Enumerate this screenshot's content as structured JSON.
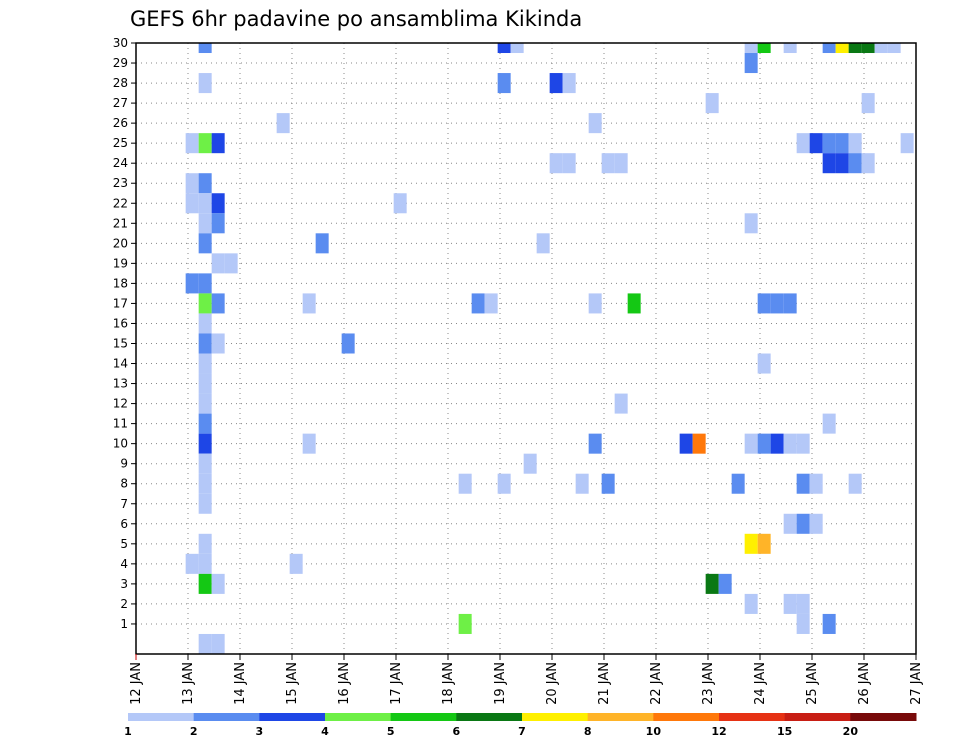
{
  "chart_data": {
    "type": "heatmap",
    "title": "GEFS 6hr padavine po ansamblima Kikinda",
    "xlabel": "",
    "ylabel": "",
    "x_tick_labels": [
      "12 JAN",
      "13 JAN",
      "14 JAN",
      "15 JAN",
      "16 JAN",
      "17 JAN",
      "18 JAN",
      "19 JAN",
      "20 JAN",
      "21 JAN",
      "22 JAN",
      "23 JAN",
      "24 JAN",
      "25 JAN",
      "26 JAN",
      "27 JAN"
    ],
    "x_range_days": [
      12,
      27
    ],
    "y_range": [
      0,
      30
    ],
    "y_ticks": [
      1,
      2,
      3,
      4,
      5,
      6,
      7,
      8,
      9,
      10,
      11,
      12,
      13,
      14,
      15,
      16,
      17,
      18,
      19,
      20,
      21,
      22,
      23,
      24,
      25,
      26,
      27,
      28,
      29,
      30
    ],
    "grid": "dotted",
    "colorbar": {
      "position": "bottom",
      "labels": [
        "1",
        "2",
        "3",
        "4",
        "5",
        "6",
        "7",
        "8",
        "10",
        "12",
        "15",
        "20"
      ],
      "colors": [
        "#b4c8f8",
        "#5a8cf0",
        "#1e46e6",
        "#6ef046",
        "#14c814",
        "#0a7814",
        "#fff000",
        "#ffb428",
        "#ff780a",
        "#e63214",
        "#c81e14",
        "#780a0a"
      ]
    },
    "cells": [
      {
        "day": 13.33,
        "member": 30,
        "value": 2
      },
      {
        "day": 19.08,
        "member": 30,
        "value": 3.5
      },
      {
        "day": 19.33,
        "member": 30,
        "value": 1.5
      },
      {
        "day": 23.83,
        "member": 30,
        "value": 1.5
      },
      {
        "day": 24.08,
        "member": 30,
        "value": 5.5
      },
      {
        "day": 24.58,
        "member": 30,
        "value": 1.5
      },
      {
        "day": 25.33,
        "member": 30,
        "value": 2.5
      },
      {
        "day": 25.58,
        "member": 30,
        "value": 7.5
      },
      {
        "day": 25.83,
        "member": 30,
        "value": 6.5
      },
      {
        "day": 26.08,
        "member": 30,
        "value": 6.5
      },
      {
        "day": 26.33,
        "member": 30,
        "value": 1.5
      },
      {
        "day": 26.58,
        "member": 30,
        "value": 1.5
      },
      {
        "day": 23.83,
        "member": 29,
        "value": 2.5
      },
      {
        "day": 13.33,
        "member": 28,
        "value": 1.5
      },
      {
        "day": 19.08,
        "member": 28,
        "value": 2.5
      },
      {
        "day": 20.08,
        "member": 28,
        "value": 3.5
      },
      {
        "day": 20.33,
        "member": 28,
        "value": 1.5
      },
      {
        "day": 23.08,
        "member": 27,
        "value": 1.5
      },
      {
        "day": 26.08,
        "member": 27,
        "value": 1.5
      },
      {
        "day": 14.83,
        "member": 26,
        "value": 1.5
      },
      {
        "day": 20.83,
        "member": 26,
        "value": 1.5
      },
      {
        "day": 13.08,
        "member": 25,
        "value": 1.5
      },
      {
        "day": 13.33,
        "member": 25,
        "value": 4.5
      },
      {
        "day": 13.58,
        "member": 25,
        "value": 3.5
      },
      {
        "day": 24.83,
        "member": 25,
        "value": 1.5
      },
      {
        "day": 25.08,
        "member": 25,
        "value": 3.5
      },
      {
        "day": 25.33,
        "member": 25,
        "value": 2.5
      },
      {
        "day": 25.58,
        "member": 25,
        "value": 2.5
      },
      {
        "day": 25.83,
        "member": 25,
        "value": 1.5
      },
      {
        "day": 26.83,
        "member": 25,
        "value": 1.5
      },
      {
        "day": 20.08,
        "member": 24,
        "value": 1.5
      },
      {
        "day": 20.33,
        "member": 24,
        "value": 1.5
      },
      {
        "day": 21.08,
        "member": 24,
        "value": 1.5
      },
      {
        "day": 21.33,
        "member": 24,
        "value": 1.5
      },
      {
        "day": 25.33,
        "member": 24,
        "value": 3.5
      },
      {
        "day": 25.58,
        "member": 24,
        "value": 3.5
      },
      {
        "day": 25.83,
        "member": 24,
        "value": 2.5
      },
      {
        "day": 26.08,
        "member": 24,
        "value": 1.5
      },
      {
        "day": 13.08,
        "member": 23,
        "value": 1.5
      },
      {
        "day": 13.33,
        "member": 23,
        "value": 2.5
      },
      {
        "day": 13.08,
        "member": 22,
        "value": 1.5
      },
      {
        "day": 13.33,
        "member": 22,
        "value": 1.5
      },
      {
        "day": 13.58,
        "member": 22,
        "value": 3.5
      },
      {
        "day": 17.08,
        "member": 22,
        "value": 1.5
      },
      {
        "day": 13.33,
        "member": 21,
        "value": 1.5
      },
      {
        "day": 13.58,
        "member": 21,
        "value": 2.5
      },
      {
        "day": 23.83,
        "member": 21,
        "value": 1.5
      },
      {
        "day": 13.33,
        "member": 20,
        "value": 2.5
      },
      {
        "day": 15.58,
        "member": 20,
        "value": 2.5
      },
      {
        "day": 19.83,
        "member": 20,
        "value": 1.5
      },
      {
        "day": 13.58,
        "member": 19,
        "value": 1.5
      },
      {
        "day": 13.83,
        "member": 19,
        "value": 1.5
      },
      {
        "day": 13.08,
        "member": 18,
        "value": 2.5
      },
      {
        "day": 13.33,
        "member": 18,
        "value": 2.5
      },
      {
        "day": 13.33,
        "member": 17,
        "value": 4.5
      },
      {
        "day": 13.58,
        "member": 17,
        "value": 2.5
      },
      {
        "day": 15.33,
        "member": 17,
        "value": 1.5
      },
      {
        "day": 18.58,
        "member": 17,
        "value": 2.5
      },
      {
        "day": 18.83,
        "member": 17,
        "value": 1.5
      },
      {
        "day": 20.83,
        "member": 17,
        "value": 1.5
      },
      {
        "day": 21.58,
        "member": 17,
        "value": 5.5
      },
      {
        "day": 24.08,
        "member": 17,
        "value": 2.5
      },
      {
        "day": 24.33,
        "member": 17,
        "value": 2.5
      },
      {
        "day": 24.58,
        "member": 17,
        "value": 2.5
      },
      {
        "day": 13.33,
        "member": 16,
        "value": 1.5
      },
      {
        "day": 13.33,
        "member": 15,
        "value": 2.5
      },
      {
        "day": 13.58,
        "member": 15,
        "value": 1.5
      },
      {
        "day": 16.08,
        "member": 15,
        "value": 2.5
      },
      {
        "day": 13.33,
        "member": 14,
        "value": 1.5
      },
      {
        "day": 24.08,
        "member": 14,
        "value": 1.5
      },
      {
        "day": 13.33,
        "member": 13,
        "value": 1.5
      },
      {
        "day": 13.33,
        "member": 12,
        "value": 1.5
      },
      {
        "day": 21.33,
        "member": 12,
        "value": 1.5
      },
      {
        "day": 13.33,
        "member": 11,
        "value": 2.5
      },
      {
        "day": 25.33,
        "member": 11,
        "value": 1.5
      },
      {
        "day": 13.33,
        "member": 10,
        "value": 3.5
      },
      {
        "day": 15.33,
        "member": 10,
        "value": 1.5
      },
      {
        "day": 20.83,
        "member": 10,
        "value": 2.5
      },
      {
        "day": 22.58,
        "member": 10,
        "value": 3.5
      },
      {
        "day": 22.83,
        "member": 10,
        "value": 11
      },
      {
        "day": 23.83,
        "member": 10,
        "value": 1.5
      },
      {
        "day": 24.08,
        "member": 10,
        "value": 2.5
      },
      {
        "day": 24.33,
        "member": 10,
        "value": 3.5
      },
      {
        "day": 24.58,
        "member": 10,
        "value": 1.5
      },
      {
        "day": 24.83,
        "member": 10,
        "value": 1.5
      },
      {
        "day": 13.33,
        "member": 9,
        "value": 1.5
      },
      {
        "day": 19.58,
        "member": 9,
        "value": 1.5
      },
      {
        "day": 13.33,
        "member": 8,
        "value": 1.5
      },
      {
        "day": 18.33,
        "member": 8,
        "value": 1.5
      },
      {
        "day": 19.08,
        "member": 8,
        "value": 1.5
      },
      {
        "day": 20.58,
        "member": 8,
        "value": 1.5
      },
      {
        "day": 21.08,
        "member": 8,
        "value": 2.5
      },
      {
        "day": 23.58,
        "member": 8,
        "value": 2.5
      },
      {
        "day": 24.83,
        "member": 8,
        "value": 2.5
      },
      {
        "day": 25.08,
        "member": 8,
        "value": 1.5
      },
      {
        "day": 25.83,
        "member": 8,
        "value": 1.5
      },
      {
        "day": 13.33,
        "member": 7,
        "value": 1.5
      },
      {
        "day": 24.58,
        "member": 6,
        "value": 1.5
      },
      {
        "day": 24.83,
        "member": 6,
        "value": 2.5
      },
      {
        "day": 25.08,
        "member": 6,
        "value": 1.5
      },
      {
        "day": 13.33,
        "member": 5,
        "value": 1.5
      },
      {
        "day": 23.83,
        "member": 5,
        "value": 7.5
      },
      {
        "day": 24.08,
        "member": 5,
        "value": 9
      },
      {
        "day": 13.08,
        "member": 4,
        "value": 1.5
      },
      {
        "day": 13.33,
        "member": 4,
        "value": 1.5
      },
      {
        "day": 15.08,
        "member": 4,
        "value": 1.5
      },
      {
        "day": 13.33,
        "member": 3,
        "value": 5.5
      },
      {
        "day": 13.58,
        "member": 3,
        "value": 1.5
      },
      {
        "day": 23.08,
        "member": 3,
        "value": 6.5
      },
      {
        "day": 23.33,
        "member": 3,
        "value": 2.5
      },
      {
        "day": 23.83,
        "member": 2,
        "value": 1.5
      },
      {
        "day": 24.58,
        "member": 2,
        "value": 1.5
      },
      {
        "day": 24.83,
        "member": 2,
        "value": 1.5
      },
      {
        "day": 18.33,
        "member": 1,
        "value": 4.5
      },
      {
        "day": 24.83,
        "member": 1,
        "value": 1.5
      },
      {
        "day": 25.33,
        "member": 1,
        "value": 2.5
      },
      {
        "day": 13.33,
        "member": 0,
        "value": 1.5
      },
      {
        "day": 13.58,
        "member": 0,
        "value": 1.5
      }
    ]
  }
}
